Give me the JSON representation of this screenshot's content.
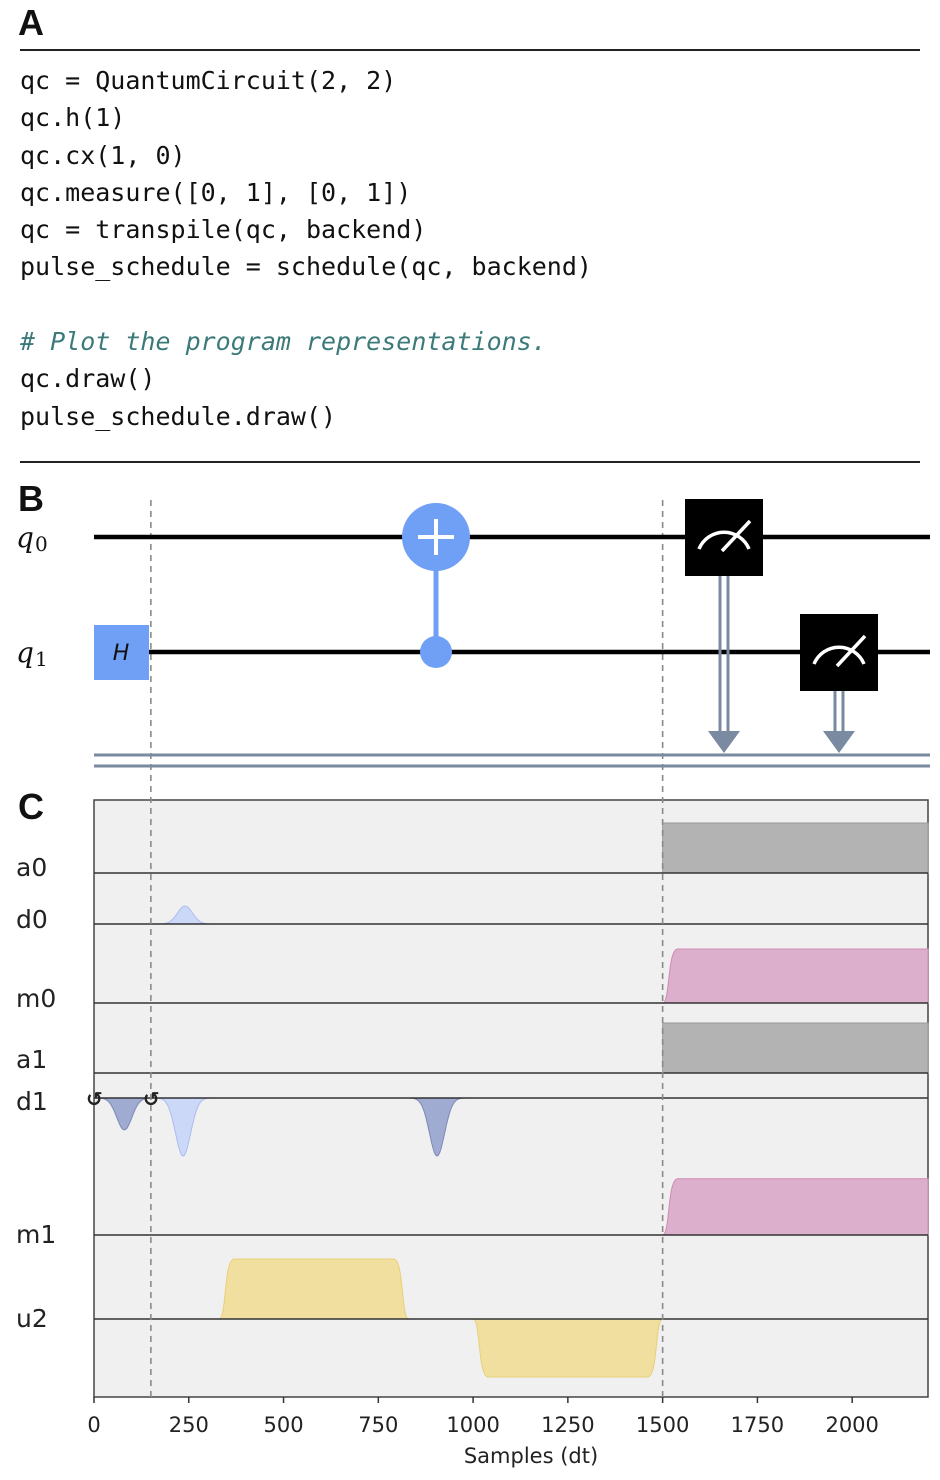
{
  "panels": {
    "a": "A",
    "b": "B",
    "c": "C"
  },
  "code": {
    "lines": [
      "qc = QuantumCircuit(2, 2)",
      "qc.h(1)",
      "qc.cx(1, 0)",
      "qc.measure([0, 1], [0, 1])",
      "qc = transpile(qc, backend)",
      "pulse_schedule = schedule(qc, backend)",
      "",
      "# Plot the program representations.",
      "qc.draw()",
      "pulse_schedule.draw()"
    ]
  },
  "circuit": {
    "qubits": [
      "q0",
      "q1"
    ],
    "gates": [
      {
        "type": "h",
        "qubit": "q1",
        "label": "H"
      },
      {
        "type": "cx",
        "control": "q1",
        "target": "q0"
      },
      {
        "type": "measure",
        "qubit": "q0"
      },
      {
        "type": "measure",
        "qubit": "q1"
      }
    ],
    "colors": {
      "gate": "#6fa0f5",
      "measure": "#000000",
      "classical": "#7a8aa0"
    }
  },
  "chart_data": {
    "type": "pulse_schedule",
    "xlabel": "Samples (dt)",
    "xlim": [
      0,
      2200
    ],
    "xticks": [
      0,
      250,
      500,
      750,
      1000,
      1250,
      1500,
      1750,
      2000
    ],
    "barriers": [
      150,
      1500
    ],
    "channels": [
      "a0",
      "d0",
      "m0",
      "a1",
      "d1",
      "m1",
      "u2"
    ],
    "pulses": [
      {
        "channel": "a0",
        "kind": "acquire",
        "start": 1500,
        "end": 2200,
        "color": "#b3b3b3"
      },
      {
        "channel": "d0",
        "kind": "gaussian",
        "center": 240,
        "width": 80,
        "amp": 0.45,
        "color": "#c9d6f7"
      },
      {
        "channel": "m0",
        "kind": "gaussian_square",
        "start": 1500,
        "end": 2200,
        "amp": 0.75,
        "color": "#dcb0cc"
      },
      {
        "channel": "a1",
        "kind": "acquire",
        "start": 1500,
        "end": 2200,
        "color": "#b3b3b3"
      },
      {
        "channel": "d1",
        "kind": "gaussian",
        "center": 80,
        "width": 80,
        "amp": -0.55,
        "color": "#9aa6cf"
      },
      {
        "channel": "d1",
        "kind": "gaussian",
        "center": 235,
        "width": 80,
        "amp": -1.0,
        "color": "#c9d6f7"
      },
      {
        "channel": "d1",
        "kind": "gaussian",
        "center": 905,
        "width": 80,
        "amp": -1.0,
        "color": "#9aa6cf"
      },
      {
        "channel": "m1",
        "kind": "gaussian_square",
        "start": 1500,
        "end": 2200,
        "amp": 0.75,
        "color": "#dcb0cc"
      },
      {
        "channel": "u2",
        "kind": "gaussian_square",
        "start": 330,
        "end": 830,
        "amp": 1.0,
        "color": "#f1df9f"
      },
      {
        "channel": "u2",
        "kind": "gaussian_square",
        "start": 1000,
        "end": 1500,
        "amp": -1.0,
        "color": "#f1df9f"
      }
    ],
    "phase_marks": [
      {
        "channel": "d1",
        "sample": 0,
        "symbol": "↺"
      },
      {
        "channel": "d1",
        "sample": 150,
        "symbol": "↺"
      }
    ]
  }
}
